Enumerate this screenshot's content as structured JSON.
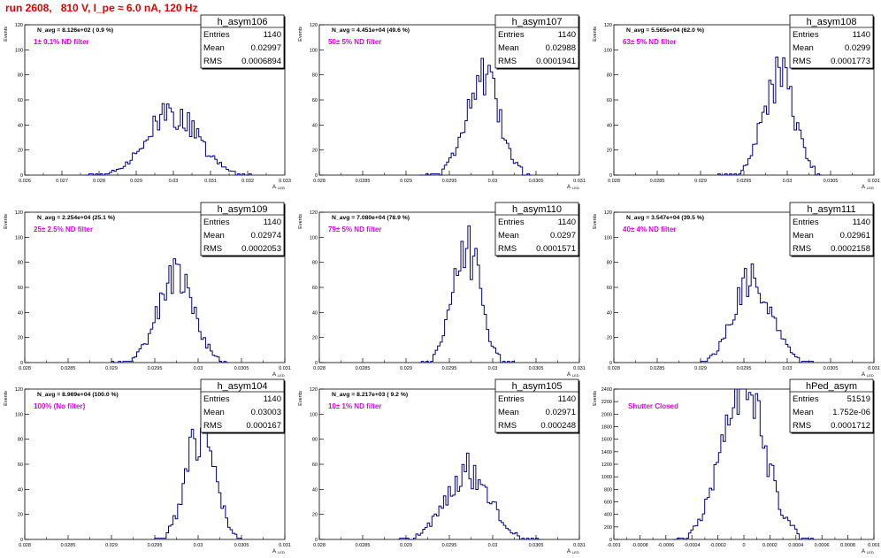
{
  "page_title": "run 2608,   810 V, I_pe ≈ 6.0 nA, 120 Hz",
  "panel_grid": {
    "cols": 3,
    "rows": 3
  },
  "colors": {
    "title": "#e00000",
    "annotation": "#e000e0",
    "histogram": "#000080",
    "axis": "#000000"
  },
  "axis_labels": {
    "x": "A",
    "x_sub": "LED",
    "y": "Events"
  },
  "stats_labels": {
    "entries": "Entries",
    "mean": "Mean",
    "rms": "RMS"
  },
  "chart_data": [
    {
      "type": "histogram",
      "name": "h_asym106",
      "navg": "N_avg = 8.126e+02 ( 0.9 %)",
      "annotation": "1± 0.1% ND filter",
      "stats": {
        "entries": "1140",
        "mean": "0.02997",
        "rms": "0.0006894"
      },
      "xlim": [
        0.026,
        0.033
      ],
      "ylim": [
        0,
        120
      ],
      "xticks": [
        0.026,
        0.027,
        0.028,
        0.029,
        0.03,
        0.031,
        0.032,
        0.033
      ],
      "xtick_labels": [
        "0.026",
        "0.027",
        "0.028",
        "0.029",
        "0.03",
        "0.031",
        "0.032",
        "0.033"
      ],
      "yticks": [
        0,
        20,
        40,
        60,
        80,
        100,
        120
      ],
      "ytick_labels": [
        "0",
        "20",
        "40",
        "60",
        "80",
        "100",
        "120"
      ],
      "bin_edges": [
        0.0276,
        0.0321
      ],
      "peak": 0.02997,
      "sigma": 0.00069,
      "height": 50
    },
    {
      "type": "histogram",
      "name": "h_asym107",
      "navg": "N_avg = 4.451e+04 (49.6 %)",
      "annotation": "50± 5% ND filter",
      "stats": {
        "entries": "1140",
        "mean": "0.02988",
        "rms": "0.0001941"
      },
      "xlim": [
        0.028,
        0.031
      ],
      "ylim": [
        0,
        120
      ],
      "xticks": [
        0.028,
        0.0285,
        0.029,
        0.0295,
        0.03,
        0.0305,
        0.031
      ],
      "xtick_labels": [
        "0.028",
        "0.0285",
        "0.029",
        "0.0295",
        "0.03",
        "0.0305",
        "0.031"
      ],
      "yticks": [
        0,
        20,
        40,
        60,
        80,
        100,
        120
      ],
      "ytick_labels": [
        "0",
        "20",
        "40",
        "60",
        "80",
        "100",
        "120"
      ],
      "bin_edges": [
        0.02915,
        0.03045
      ],
      "peak": 0.02988,
      "sigma": 0.000194,
      "height": 80
    },
    {
      "type": "histogram",
      "name": "h_asym108",
      "navg": "N_avg = 5.565e+04 (62.0 %)",
      "annotation": "63± 5% ND filter",
      "stats": {
        "entries": "1140",
        "mean": "0.0299",
        "rms": "0.0001773"
      },
      "xlim": [
        0.028,
        0.031
      ],
      "ylim": [
        0,
        120
      ],
      "xticks": [
        0.028,
        0.0285,
        0.029,
        0.0295,
        0.03,
        0.0305,
        0.031
      ],
      "xtick_labels": [
        "0.028",
        "0.0285",
        "0.029",
        "0.0295",
        "0.03",
        "0.0305",
        "0.031"
      ],
      "yticks": [
        0,
        20,
        40,
        60,
        80,
        100,
        120
      ],
      "ytick_labels": [
        "0",
        "20",
        "40",
        "60",
        "80",
        "100",
        "120"
      ],
      "bin_edges": [
        0.0292,
        0.0304
      ],
      "peak": 0.0299,
      "sigma": 0.000177,
      "height": 82
    },
    {
      "type": "histogram",
      "name": "h_asym109",
      "navg": "N_avg = 2.254e+04 (25.1 %)",
      "annotation": "25± 2.5% ND filter",
      "stats": {
        "entries": "1140",
        "mean": "0.02974",
        "rms": "0.0002053"
      },
      "xlim": [
        0.028,
        0.031
      ],
      "ylim": [
        0,
        120
      ],
      "xticks": [
        0.028,
        0.0285,
        0.029,
        0.0295,
        0.03,
        0.0305,
        0.031
      ],
      "xtick_labels": [
        "0.028",
        "0.0285",
        "0.029",
        "0.0295",
        "0.03",
        "0.0305",
        "0.031"
      ],
      "yticks": [
        0,
        20,
        40,
        60,
        80,
        100,
        120
      ],
      "ytick_labels": [
        "0",
        "20",
        "40",
        "60",
        "80",
        "100",
        "120"
      ],
      "bin_edges": [
        0.029,
        0.03035
      ],
      "peak": 0.02974,
      "sigma": 0.000205,
      "height": 72
    },
    {
      "type": "histogram",
      "name": "h_asym110",
      "navg": "N_avg = 7.080e+04 (78.9 %)",
      "annotation": "79± 5% ND filter",
      "stats": {
        "entries": "1140",
        "mean": "0.0297",
        "rms": "0.0001571"
      },
      "xlim": [
        0.028,
        0.031
      ],
      "ylim": [
        0,
        120
      ],
      "xticks": [
        0.028,
        0.0285,
        0.029,
        0.0295,
        0.03,
        0.0305,
        0.031
      ],
      "xtick_labels": [
        "0.028",
        "0.0285",
        "0.029",
        "0.0295",
        "0.03",
        "0.0305",
        "0.031"
      ],
      "yticks": [
        0,
        20,
        40,
        60,
        80,
        100,
        120
      ],
      "ytick_labels": [
        "0",
        "20",
        "40",
        "60",
        "80",
        "100",
        "120"
      ],
      "bin_edges": [
        0.02915,
        0.03025
      ],
      "peak": 0.0297,
      "sigma": 0.000157,
      "height": 95
    },
    {
      "type": "histogram",
      "name": "h_asym111",
      "navg": "N_avg = 3.547e+04 (39.5 %)",
      "annotation": "40± 4% ND filter",
      "stats": {
        "entries": "1140",
        "mean": "0.02961",
        "rms": "0.0002158"
      },
      "xlim": [
        0.028,
        0.031
      ],
      "ylim": [
        0,
        120
      ],
      "xticks": [
        0.028,
        0.0285,
        0.029,
        0.0295,
        0.03,
        0.0305,
        0.031
      ],
      "xtick_labels": [
        "0.028",
        "0.0285",
        "0.029",
        "0.0295",
        "0.03",
        "0.0305",
        "0.031"
      ],
      "yticks": [
        0,
        20,
        40,
        60,
        80,
        100,
        120
      ],
      "ytick_labels": [
        "0",
        "20",
        "40",
        "60",
        "80",
        "100",
        "120"
      ],
      "bin_edges": [
        0.029,
        0.0303
      ],
      "peak": 0.02961,
      "sigma": 0.000216,
      "height": 68
    },
    {
      "type": "histogram",
      "name": "h_asym104",
      "navg": "N_avg = 8.969e+04 (100.0 %)",
      "annotation": "100% (No filter)",
      "stats": {
        "entries": "1140",
        "mean": "0.03003",
        "rms": "0.000167"
      },
      "xlim": [
        0.028,
        0.031
      ],
      "ylim": [
        0,
        120
      ],
      "xticks": [
        0.028,
        0.0285,
        0.029,
        0.0295,
        0.03,
        0.0305,
        0.031
      ],
      "xtick_labels": [
        "0.028",
        "0.0285",
        "0.029",
        "0.0295",
        "0.03",
        "0.0305",
        "0.031"
      ],
      "yticks": [
        0,
        20,
        40,
        60,
        80,
        100,
        120
      ],
      "ytick_labels": [
        "0",
        "20",
        "40",
        "60",
        "80",
        "100",
        "120"
      ],
      "bin_edges": [
        0.0295,
        0.0305
      ],
      "peak": 0.03003,
      "sigma": 0.000167,
      "height": 88
    },
    {
      "type": "histogram",
      "name": "h_asym105",
      "navg": "N_avg = 8.217e+03 ( 9.2 %)",
      "annotation": "10± 1% ND filter",
      "stats": {
        "entries": "1140",
        "mean": "0.02971",
        "rms": "0.000248"
      },
      "xlim": [
        0.028,
        0.031
      ],
      "ylim": [
        0,
        120
      ],
      "xticks": [
        0.028,
        0.0285,
        0.029,
        0.0295,
        0.03,
        0.0305,
        0.031
      ],
      "xtick_labels": [
        "0.028",
        "0.0285",
        "0.029",
        "0.0295",
        "0.03",
        "0.0305",
        "0.031"
      ],
      "yticks": [
        0,
        20,
        40,
        60,
        80,
        100,
        120
      ],
      "ytick_labels": [
        "0",
        "20",
        "40",
        "60",
        "80",
        "100",
        "120"
      ],
      "bin_edges": [
        0.0289,
        0.03055
      ],
      "peak": 0.02971,
      "sigma": 0.000248,
      "height": 57
    },
    {
      "type": "histogram",
      "name": "hPed_asym",
      "navg": "",
      "annotation": "Shutter Closed",
      "stats": {
        "entries": "51519",
        "mean": "1.752e-06",
        "rms": "0.0001712"
      },
      "xlim": [
        -0.001,
        0.001
      ],
      "ylim": [
        0,
        2400
      ],
      "xticks": [
        -0.001,
        -0.0008,
        -0.0006,
        -0.0004,
        -0.0002,
        0,
        0.0002,
        0.0004,
        0.0006,
        0.0008,
        0.001
      ],
      "xtick_labels": [
        "-0.001",
        "-0.0008",
        "-0.0006",
        "-0.0004",
        "-0.0002",
        "0",
        "0.0002",
        "0.0004",
        "0.0006",
        "0.0008",
        "0.001"
      ],
      "yticks": [
        0,
        200,
        400,
        600,
        800,
        1000,
        1200,
        1400,
        1600,
        1800,
        2000,
        2200,
        2400
      ],
      "ytick_labels": [
        "0",
        "200",
        "400",
        "600",
        "800",
        "1000",
        "1200",
        "1400",
        "1600",
        "1800",
        "2000",
        "2200",
        "2400"
      ],
      "bin_edges": [
        -0.00055,
        0.00055
      ],
      "peak": 0.0,
      "sigma": 0.000171,
      "height": 2280
    }
  ]
}
